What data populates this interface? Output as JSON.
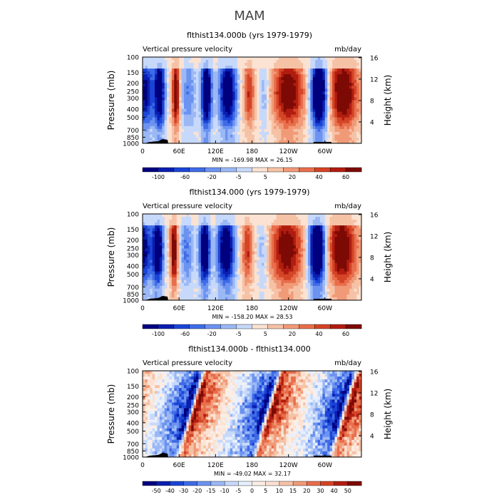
{
  "figure_title": "MAM",
  "colors": {
    "levels_main": [
      "#00007f",
      "#0a1fb0",
      "#1b45d6",
      "#3f6be6",
      "#6c93f0",
      "#9bb8f5",
      "#c7d9fb",
      "#fbe2d2",
      "#f6c2a6",
      "#f19a78",
      "#e86e4c",
      "#d44426",
      "#b11d10",
      "#7d0a05"
    ],
    "levels_diff": [
      "#00007f",
      "#0a1fb0",
      "#1b45d6",
      "#3f6be6",
      "#6c93f0",
      "#9bb8f5",
      "#c7d9fb",
      "#e8f0fd",
      "#fdeee5",
      "#fbe2d2",
      "#f6c2a6",
      "#f19a78",
      "#e86e4c",
      "#d44426",
      "#b11d10",
      "#7d0a05"
    ]
  },
  "chart_data": [
    {
      "type": "heatmap",
      "title": "flthist134.000b (yrs 1979-1979)",
      "left_string": "Vertical pressure velocity",
      "right_string": "mb/day",
      "ylabel": "Pressure (mb)",
      "ylabel_right": "Height (km)",
      "x_ticks": [
        "0",
        "60E",
        "120E",
        "180",
        "120W",
        "60W"
      ],
      "y_ticks": [
        "100",
        "150",
        "200",
        "250",
        "300",
        "400",
        "500",
        "700",
        "850",
        "1000"
      ],
      "y_ticks_right": [
        "16",
        "12",
        "8",
        "4"
      ],
      "min_max_text": "MIN = -169.98   MAX =  26.15",
      "colorbar_labels": [
        "-100",
        "-60",
        "-20",
        "-5",
        "5",
        "20",
        "40",
        "60"
      ],
      "ylim": [
        1000,
        100
      ],
      "xlim": [
        0,
        360
      ]
    },
    {
      "type": "heatmap",
      "title": "flthist134.000 (yrs 1979-1979)",
      "left_string": "Vertical pressure velocity",
      "right_string": "mb/day",
      "ylabel": "Pressure (mb)",
      "ylabel_right": "Height (km)",
      "x_ticks": [
        "0",
        "60E",
        "120E",
        "180",
        "120W",
        "60W"
      ],
      "y_ticks": [
        "100",
        "150",
        "200",
        "250",
        "300",
        "400",
        "500",
        "700",
        "850",
        "1000"
      ],
      "y_ticks_right": [
        "16",
        "12",
        "8",
        "4"
      ],
      "min_max_text": "MIN = -158.20   MAX =  28.53",
      "colorbar_labels": [
        "-100",
        "-60",
        "-20",
        "-5",
        "5",
        "20",
        "40",
        "60"
      ],
      "ylim": [
        1000,
        100
      ],
      "xlim": [
        0,
        360
      ]
    },
    {
      "type": "heatmap",
      "title": "flthist134.000b - flthist134.000",
      "left_string": "Vertical pressure velocity",
      "right_string": "mb/day",
      "ylabel": "Pressure (mb)",
      "ylabel_right": "Height (km)",
      "x_ticks": [
        "0",
        "60E",
        "120E",
        "180",
        "120W",
        "60W"
      ],
      "y_ticks": [
        "100",
        "150",
        "200",
        "250",
        "300",
        "400",
        "500",
        "700",
        "850",
        "1000"
      ],
      "y_ticks_right": [
        "16",
        "12",
        "8",
        "4"
      ],
      "min_max_text": "MIN = -49.02   MAX =  32.17",
      "colorbar_labels": [
        "-50",
        "-40",
        "-30",
        "-20",
        "-15",
        "-10",
        "-5",
        "0",
        "5",
        "10",
        "15",
        "20",
        "30",
        "40",
        "50"
      ],
      "ylim": [
        1000,
        100
      ],
      "xlim": [
        0,
        360
      ]
    }
  ]
}
